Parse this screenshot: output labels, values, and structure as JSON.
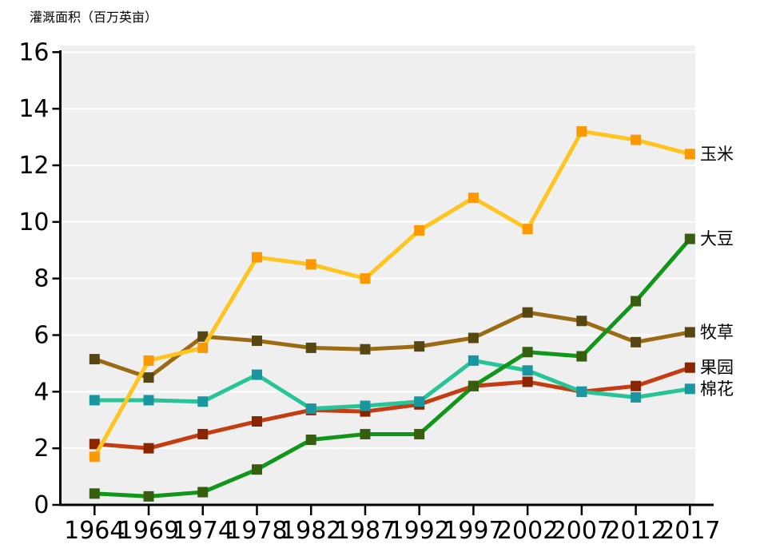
{
  "title": "灌溉面积（百万英亩）",
  "colors": {
    "plot_bg": "#EFEFEF",
    "grid": "#FFFFFF",
    "axis": "#000000",
    "text": "#000000"
  },
  "chart_data": {
    "type": "line",
    "title": "灌溉面积（百万英亩）",
    "xlabel": "",
    "ylabel": "灌溉面积（百万英亩）",
    "x_categories": [
      "1964",
      "1969",
      "1974",
      "1978",
      "1982",
      "1987",
      "1992",
      "1997",
      "2002",
      "2007",
      "2012",
      "2017"
    ],
    "ylim": [
      0,
      16
    ],
    "yticks": [
      "0",
      "2",
      "4",
      "6",
      "8",
      "10",
      "12",
      "14",
      "16"
    ],
    "grid": "horizontal white gridlines on light-gray panel",
    "legend_position": "right edge, next to final data point of each series",
    "marker": "filled square",
    "draw_order": [
      "牧草",
      "果园",
      "棉花",
      "玉米",
      "大豆"
    ],
    "series": [
      {
        "name": "玉米",
        "line_color": "#FFC41E",
        "marker_color": "#FB9903",
        "values": [
          1.7,
          5.1,
          5.55,
          8.75,
          8.5,
          8.0,
          9.7,
          10.85,
          9.75,
          13.2,
          12.9,
          12.4
        ]
      },
      {
        "name": "大豆",
        "line_color": "#109618",
        "marker_color": "#375E0F",
        "values": [
          0.4,
          0.3,
          0.45,
          1.25,
          2.3,
          2.5,
          2.5,
          4.2,
          5.4,
          5.25,
          7.2,
          9.4
        ]
      },
      {
        "name": "牧草",
        "line_color": "#9A6B14",
        "marker_color": "#564612",
        "values": [
          5.15,
          4.5,
          5.95,
          5.8,
          5.55,
          5.5,
          5.6,
          5.9,
          6.8,
          6.5,
          5.75,
          6.1
        ]
      },
      {
        "name": "果园",
        "line_color": "#C43C12",
        "marker_color": "#8B2500",
        "values": [
          2.15,
          2.0,
          2.5,
          2.95,
          3.35,
          3.3,
          3.55,
          4.2,
          4.35,
          4.0,
          4.2,
          4.85
        ]
      },
      {
        "name": "棉花",
        "line_color": "#27C498",
        "marker_color": "#1A96A0",
        "values": [
          3.7,
          3.7,
          3.65,
          4.6,
          3.4,
          3.5,
          3.65,
          5.1,
          4.75,
          4.0,
          3.8,
          4.1
        ]
      }
    ]
  }
}
